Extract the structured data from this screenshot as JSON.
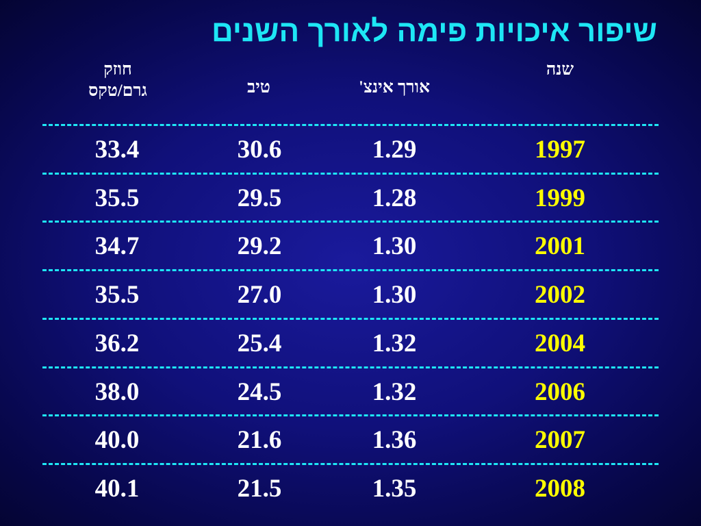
{
  "title": "שיפור איכויות פימה לאורך השנים",
  "headers": {
    "year": "שנה",
    "length": "אורך  אינצ'",
    "fineness": "טיב",
    "strength_line1": "חוזק",
    "strength_line2": "גרם/טקס"
  },
  "rows": [
    {
      "year": "1997",
      "length": "1.29",
      "fineness": "30.6",
      "strength": "33.4"
    },
    {
      "year": "1999",
      "length": "1.28",
      "fineness": "29.5",
      "strength": "35.5"
    },
    {
      "year": "2001",
      "length": "1.30",
      "fineness": "29.2",
      "strength": "34.7"
    },
    {
      "year": "2002",
      "length": "1.30",
      "fineness": "27.0",
      "strength": "35.5"
    },
    {
      "year": "2004",
      "length": "1.32",
      "fineness": "25.4",
      "strength": "36.2"
    },
    {
      "year": "2006",
      "length": "1.32",
      "fineness": "24.5",
      "strength": "38.0"
    },
    {
      "year": "2007",
      "length": "1.36",
      "fineness": "21.6",
      "strength": "40.0"
    },
    {
      "year": "2008",
      "length": "1.35",
      "fineness": "21.5",
      "strength": "40.1"
    }
  ],
  "colors": {
    "title": "#1ee6f5",
    "separator": "#1ee6f5",
    "year_text": "#ffff00",
    "value_text": "#ffffff",
    "background": "#10107a"
  }
}
